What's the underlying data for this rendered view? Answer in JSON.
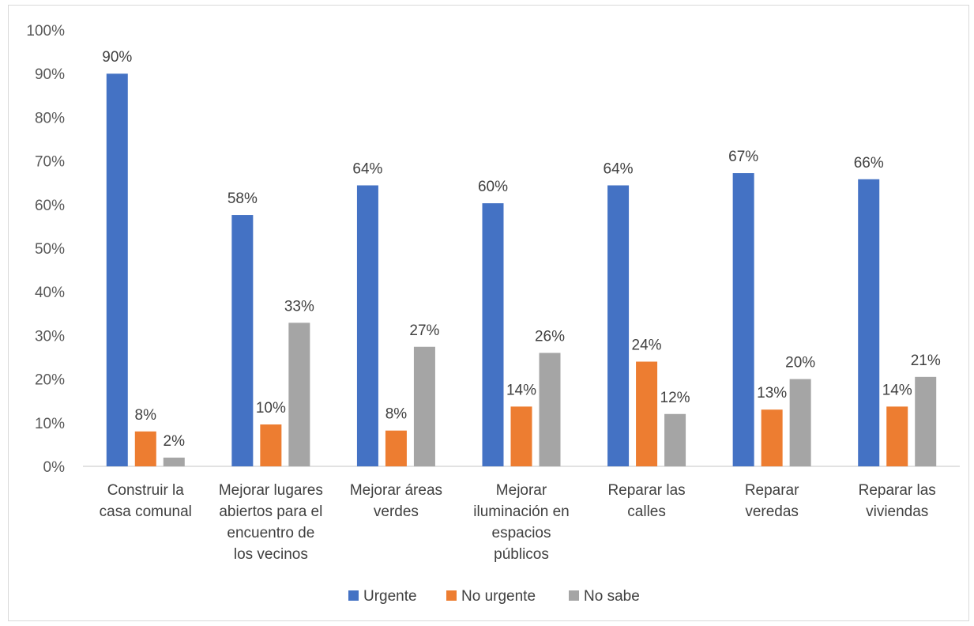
{
  "chart_data": {
    "type": "bar",
    "title": "",
    "xlabel": "",
    "ylabel": "",
    "ylim": [
      0,
      100
    ],
    "y_ticks": [
      "0%",
      "10%",
      "20%",
      "30%",
      "40%",
      "50%",
      "60%",
      "70%",
      "80%",
      "90%",
      "100%"
    ],
    "grid": false,
    "legend_position": "bottom",
    "categories": [
      [
        "Construir la",
        "casa comunal"
      ],
      [
        "Mejorar lugares",
        "abiertos para el",
        "encuentro de",
        "los vecinos"
      ],
      [
        "Mejorar áreas",
        "verdes"
      ],
      [
        "Mejorar",
        "iluminación en",
        "espacios",
        "públicos"
      ],
      [
        "Reparar las",
        "calles"
      ],
      [
        "Reparar",
        "veredas"
      ],
      [
        "Reparar las",
        "viviendas"
      ]
    ],
    "series": [
      {
        "name": "Urgente",
        "color": "#4472c4",
        "values": [
          90,
          57.6,
          64.4,
          60.3,
          64.4,
          67.2,
          65.8
        ],
        "labels": [
          "90%",
          "58%",
          "64%",
          "60%",
          "64%",
          "67%",
          "66%"
        ]
      },
      {
        "name": "No urgente",
        "color": "#ed7d31",
        "values": [
          8,
          9.6,
          8.2,
          13.7,
          24,
          13,
          13.7
        ],
        "labels": [
          "8%",
          "10%",
          "8%",
          "14%",
          "24%",
          "13%",
          "14%"
        ]
      },
      {
        "name": "No sabe",
        "color": "#a5a5a5",
        "values": [
          2,
          32.9,
          27.4,
          26,
          12,
          20,
          20.5
        ],
        "labels": [
          "2%",
          "33%",
          "27%",
          "26%",
          "12%",
          "20%",
          "21%"
        ]
      }
    ]
  }
}
